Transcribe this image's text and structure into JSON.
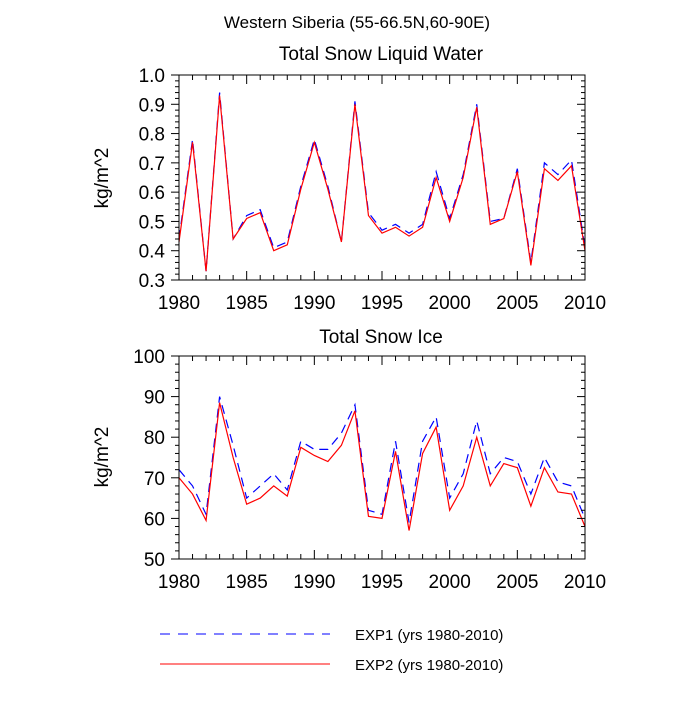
{
  "figure": {
    "suptitle": "Western Siberia (55-66.5N,60-90E)"
  },
  "colors": {
    "exp1": "#0000ff",
    "exp2": "#ff0000",
    "axis": "#000000"
  },
  "legend": {
    "placement": "bottom",
    "entries": [
      {
        "label": "EXP1 (yrs 1980-2010)",
        "color": "#0000ff",
        "dash": "dashed"
      },
      {
        "label": "EXP2 (yrs 1980-2010)",
        "color": "#ff0000",
        "dash": "solid"
      }
    ]
  },
  "chart_data": [
    {
      "type": "line",
      "title": "Total Snow Liquid Water",
      "ylabel": "kg/m^2",
      "xlabel": "",
      "xlim": [
        1980,
        2010
      ],
      "ylim": [
        0.3,
        1.0
      ],
      "xticks": [
        1980,
        1985,
        1990,
        1995,
        2000,
        2005,
        2010
      ],
      "xticklabels": [
        "1980",
        "1985",
        "1990",
        "1995",
        "2000",
        "2005",
        "2010"
      ],
      "yticks": [
        0.3,
        0.4,
        0.5,
        0.6,
        0.7,
        0.8,
        0.9,
        1.0
      ],
      "yticklabels": [
        "0.3",
        "0.4",
        "0.5",
        "0.6",
        "0.7",
        "0.8",
        "0.9",
        "1.0"
      ],
      "grid": false,
      "x": [
        1980,
        1981,
        1982,
        1983,
        1984,
        1985,
        1986,
        1987,
        1988,
        1989,
        1990,
        1991,
        1992,
        1993,
        1994,
        1995,
        1996,
        1997,
        1998,
        1999,
        2000,
        2001,
        2002,
        2003,
        2004,
        2005,
        2006,
        2007,
        2008,
        2009,
        2010
      ],
      "series": [
        {
          "name": "EXP1 (yrs 1980-2010)",
          "color": "#0000ff",
          "dash": "dashed",
          "values": [
            0.44,
            0.78,
            0.33,
            0.94,
            0.44,
            0.52,
            0.54,
            0.41,
            0.43,
            0.62,
            0.78,
            0.62,
            0.43,
            0.91,
            0.53,
            0.47,
            0.49,
            0.46,
            0.49,
            0.67,
            0.51,
            0.66,
            0.9,
            0.5,
            0.51,
            0.68,
            0.36,
            0.7,
            0.66,
            0.71,
            0.41
          ]
        },
        {
          "name": "EXP2 (yrs 1980-2010)",
          "color": "#ff0000",
          "dash": "solid",
          "values": [
            0.43,
            0.77,
            0.33,
            0.93,
            0.44,
            0.51,
            0.53,
            0.4,
            0.42,
            0.61,
            0.77,
            0.61,
            0.43,
            0.9,
            0.52,
            0.46,
            0.48,
            0.45,
            0.48,
            0.65,
            0.5,
            0.65,
            0.89,
            0.49,
            0.51,
            0.67,
            0.35,
            0.68,
            0.64,
            0.69,
            0.4
          ]
        }
      ]
    },
    {
      "type": "line",
      "title": "Total Snow Ice",
      "ylabel": "kg/m^2",
      "xlabel": "",
      "xlim": [
        1980,
        2010
      ],
      "ylim": [
        50,
        100
      ],
      "xticks": [
        1980,
        1985,
        1990,
        1995,
        2000,
        2005,
        2010
      ],
      "xticklabels": [
        "1980",
        "1985",
        "1990",
        "1995",
        "2000",
        "2005",
        "2010"
      ],
      "yticks": [
        50,
        60,
        70,
        80,
        90,
        100
      ],
      "yticklabels": [
        "50",
        "60",
        "70",
        "80",
        "90",
        "100"
      ],
      "grid": false,
      "x": [
        1980,
        1981,
        1982,
        1983,
        1984,
        1985,
        1986,
        1987,
        1988,
        1989,
        1990,
        1991,
        1992,
        1993,
        1994,
        1995,
        1996,
        1997,
        1998,
        1999,
        2000,
        2001,
        2002,
        2003,
        2004,
        2005,
        2006,
        2007,
        2008,
        2009,
        2010
      ],
      "series": [
        {
          "name": "EXP1 (yrs 1980-2010)",
          "color": "#0000ff",
          "dash": "dashed",
          "values": [
            72,
            68,
            61,
            90,
            78,
            65,
            68,
            71,
            67,
            79,
            77,
            77,
            81,
            88,
            62,
            61,
            79,
            59,
            79,
            85,
            65,
            71,
            84,
            71,
            75,
            74,
            66,
            75,
            69,
            68,
            60
          ]
        },
        {
          "name": "EXP2 (yrs 1980-2010)",
          "color": "#ff0000",
          "dash": "solid",
          "values": [
            70,
            66,
            59.5,
            88.5,
            75,
            63.5,
            65,
            68,
            65.5,
            77.5,
            75.5,
            74,
            78,
            86.5,
            60.5,
            60,
            76.5,
            57,
            76,
            82.5,
            62,
            68,
            80,
            68,
            73.5,
            72.5,
            63,
            72.5,
            66.5,
            66,
            58
          ]
        }
      ]
    }
  ]
}
